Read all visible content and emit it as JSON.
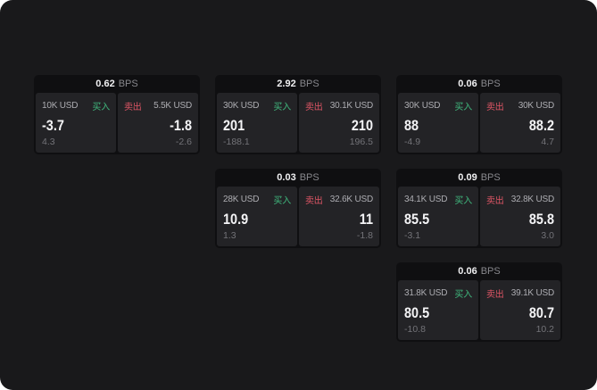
{
  "labels": {
    "bps_suffix": "BPS",
    "buy_label": "买入",
    "sell_label": "卖出"
  },
  "colors": {
    "page_bg": "#19191b",
    "card_bg": "#0f0f11",
    "panel_bg": "#232326",
    "buy_green": "#40b97e",
    "sell_red": "#e05666"
  },
  "cards": [
    {
      "row": 0,
      "col": 0,
      "bps": "0.62",
      "buy": {
        "amount": "10K USD",
        "price": "-3.7",
        "delta": "4.3"
      },
      "sell": {
        "amount": "5.5K USD",
        "price": "-1.8",
        "delta": "-2.6"
      }
    },
    {
      "row": 0,
      "col": 1,
      "bps": "2.92",
      "buy": {
        "amount": "30K USD",
        "price": "201",
        "delta": "-188.1"
      },
      "sell": {
        "amount": "30.1K USD",
        "price": "210",
        "delta": "196.5"
      }
    },
    {
      "row": 0,
      "col": 2,
      "bps": "0.06",
      "buy": {
        "amount": "30K USD",
        "price": "88",
        "delta": "-4.9"
      },
      "sell": {
        "amount": "30K USD",
        "price": "88.2",
        "delta": "4.7"
      }
    },
    {
      "row": 1,
      "col": 1,
      "bps": "0.03",
      "buy": {
        "amount": "28K USD",
        "price": "10.9",
        "delta": "1.3"
      },
      "sell": {
        "amount": "32.6K USD",
        "price": "11",
        "delta": "-1.8"
      }
    },
    {
      "row": 1,
      "col": 2,
      "bps": "0.09",
      "buy": {
        "amount": "34.1K USD",
        "price": "85.5",
        "delta": "-3.1"
      },
      "sell": {
        "amount": "32.8K USD",
        "price": "85.8",
        "delta": "3.0"
      }
    },
    {
      "row": 2,
      "col": 2,
      "bps": "0.06",
      "buy": {
        "amount": "31.8K USD",
        "price": "80.5",
        "delta": "-10.8"
      },
      "sell": {
        "amount": "39.1K USD",
        "price": "80.7",
        "delta": "10.2"
      }
    }
  ]
}
